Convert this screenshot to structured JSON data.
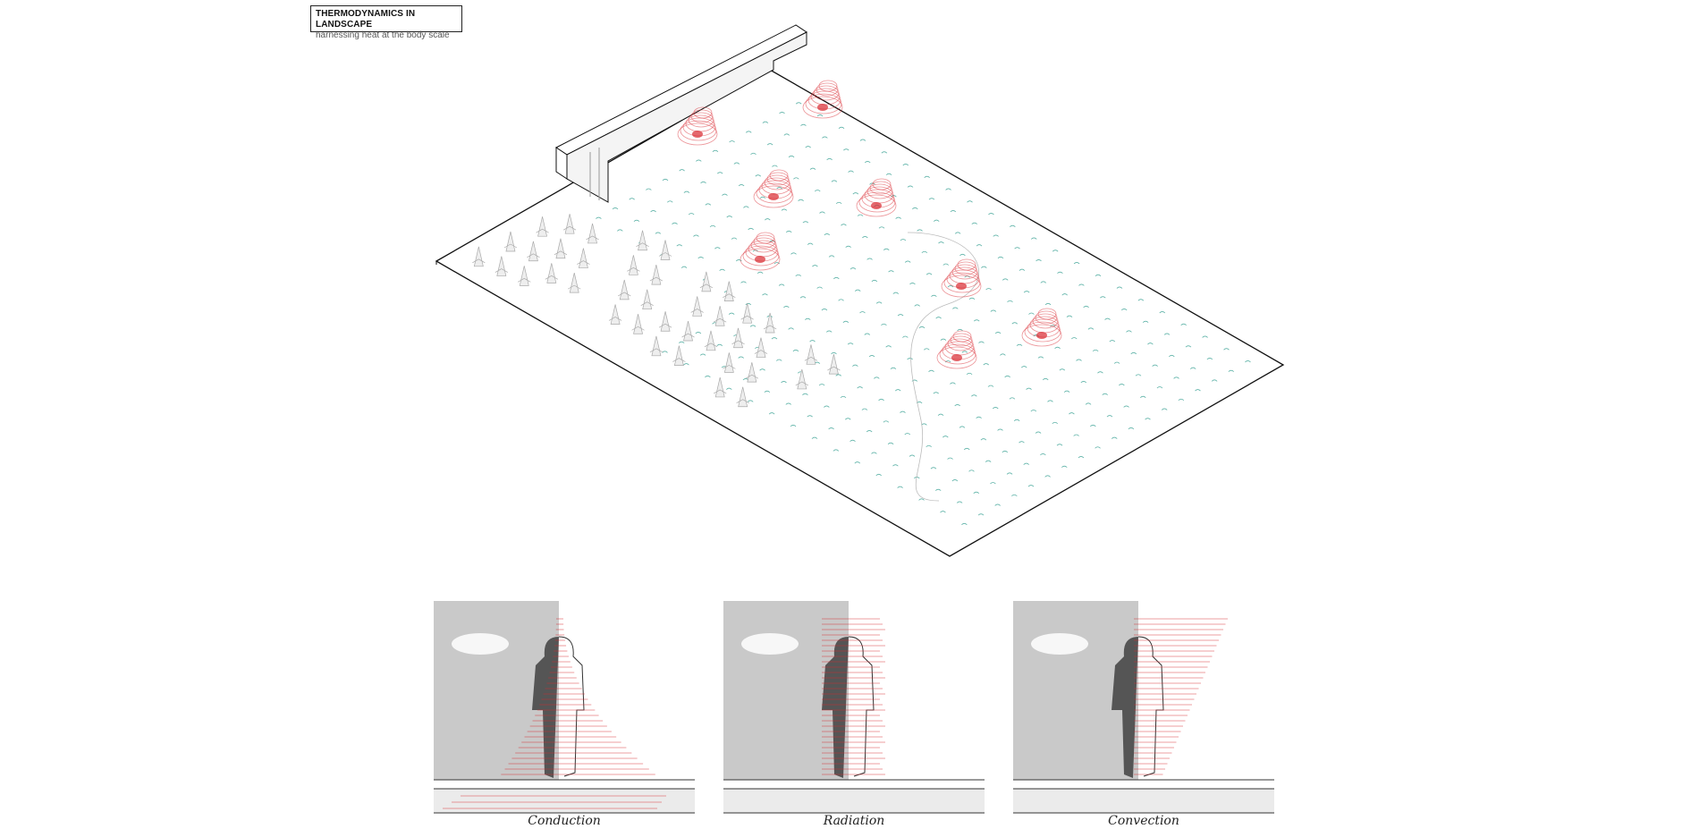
{
  "header": {
    "title": "THERMODYNAMICS IN LANDSCAPE",
    "subtitle": "harnessing heat at the body scale"
  },
  "panels": [
    {
      "caption": "Conduction"
    },
    {
      "caption": "Radiation"
    },
    {
      "caption": "Convection"
    }
  ],
  "colors": {
    "heat": "#d9282f",
    "wind_marks": "#5fb3a8",
    "outline": "#222222",
    "sky": "#c9c9c9",
    "ground": "#ebebeb"
  }
}
